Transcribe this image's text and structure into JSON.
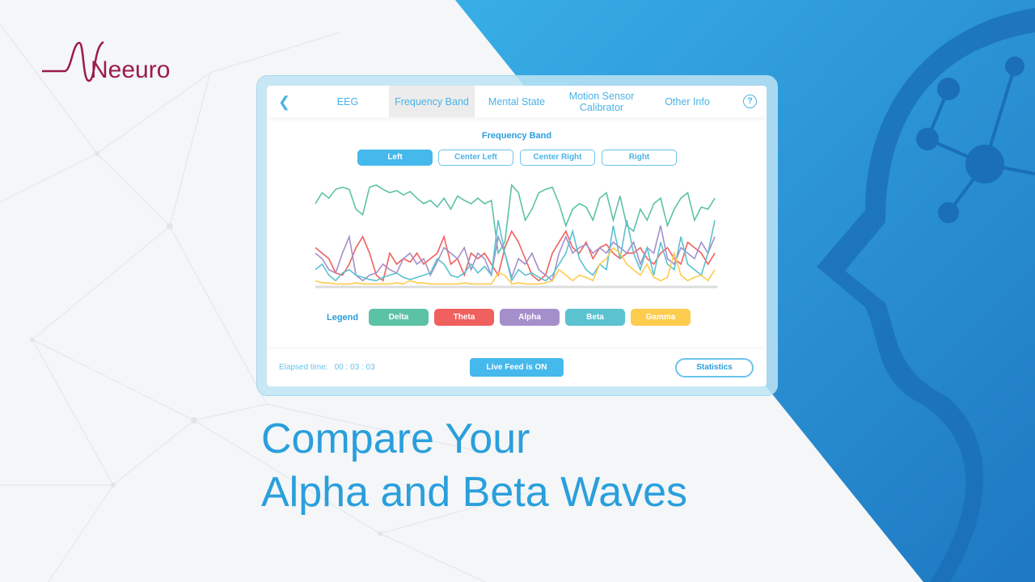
{
  "brand": {
    "name": "Neeuro",
    "color": "#9b1b4a"
  },
  "app": {
    "tabs": [
      {
        "label": "EEG"
      },
      {
        "label": "Frequency Band",
        "active": true
      },
      {
        "label": "Mental State"
      },
      {
        "label": "Motion Sensor Calibrator"
      },
      {
        "label": "Other Info"
      }
    ],
    "back_icon": "chevron-left-icon",
    "help_icon": "question-circle-icon",
    "section_title": "Frequency Band",
    "channels": [
      {
        "label": "Left",
        "selected": true
      },
      {
        "label": "Center Left"
      },
      {
        "label": "Center Right"
      },
      {
        "label": "Right"
      }
    ],
    "legend_label": "Legend",
    "footer": {
      "elapsed_label": "Elapsed time:",
      "elapsed_value": "00 : 03 : 03",
      "live_feed": "Live Feed is ON",
      "statistics": "Statistics"
    }
  },
  "headline": {
    "line1": "Compare Your",
    "line2": "Alpha and Beta Waves"
  },
  "colors": {
    "accent": "#45b8ec",
    "background_blue": "#2f95d8"
  },
  "chart_data": {
    "type": "line",
    "ylim": [
      0,
      1
    ],
    "grid": false,
    "series": [
      {
        "name": "Delta",
        "color": "#5cc2a6",
        "values": [
          0.75,
          0.85,
          0.8,
          0.88,
          0.9,
          0.88,
          0.7,
          0.65,
          0.9,
          0.92,
          0.88,
          0.85,
          0.87,
          0.83,
          0.86,
          0.8,
          0.75,
          0.78,
          0.72,
          0.8,
          0.7,
          0.82,
          0.78,
          0.75,
          0.8,
          0.75,
          0.78,
          0.3,
          0.4,
          0.92,
          0.85,
          0.6,
          0.7,
          0.85,
          0.88,
          0.9,
          0.75,
          0.55,
          0.7,
          0.75,
          0.72,
          0.6,
          0.8,
          0.85,
          0.6,
          0.82,
          0.55,
          0.5,
          0.7,
          0.6,
          0.75,
          0.8,
          0.55,
          0.7,
          0.8,
          0.85,
          0.6,
          0.72,
          0.7,
          0.8
        ]
      },
      {
        "name": "Theta",
        "color": "#f0605f",
        "values": [
          0.35,
          0.3,
          0.25,
          0.12,
          0.1,
          0.2,
          0.35,
          0.45,
          0.3,
          0.1,
          0.05,
          0.3,
          0.2,
          0.25,
          0.22,
          0.3,
          0.2,
          0.25,
          0.3,
          0.45,
          0.2,
          0.25,
          0.1,
          0.3,
          0.25,
          0.3,
          0.2,
          0.1,
          0.35,
          0.5,
          0.4,
          0.25,
          0.1,
          0.05,
          0.1,
          0.3,
          0.4,
          0.5,
          0.35,
          0.3,
          0.4,
          0.25,
          0.35,
          0.38,
          0.3,
          0.25,
          0.3,
          0.3,
          0.35,
          0.25,
          0.2,
          0.3,
          0.35,
          0.25,
          0.2,
          0.4,
          0.35,
          0.3,
          0.2,
          0.3
        ]
      },
      {
        "name": "Alpha",
        "color": "#a58fcb",
        "values": [
          0.3,
          0.25,
          0.15,
          0.12,
          0.3,
          0.45,
          0.1,
          0.05,
          0.1,
          0.12,
          0.2,
          0.15,
          0.12,
          0.25,
          0.3,
          0.2,
          0.25,
          0.1,
          0.22,
          0.35,
          0.3,
          0.25,
          0.35,
          0.15,
          0.3,
          0.25,
          0.1,
          0.45,
          0.3,
          0.08,
          0.25,
          0.2,
          0.3,
          0.15,
          0.1,
          0.05,
          0.3,
          0.45,
          0.3,
          0.35,
          0.38,
          0.3,
          0.35,
          0.3,
          0.4,
          0.35,
          0.3,
          0.4,
          0.2,
          0.35,
          0.3,
          0.55,
          0.25,
          0.2,
          0.35,
          0.3,
          0.25,
          0.4,
          0.3,
          0.45
        ]
      },
      {
        "name": "Beta",
        "color": "#5bc2d0",
        "values": [
          0.15,
          0.2,
          0.1,
          0.05,
          0.12,
          0.15,
          0.1,
          0.08,
          0.06,
          0.05,
          0.08,
          0.1,
          0.12,
          0.08,
          0.06,
          0.08,
          0.1,
          0.12,
          0.25,
          0.2,
          0.1,
          0.08,
          0.12,
          0.2,
          0.12,
          0.18,
          0.1,
          0.6,
          0.3,
          0.05,
          0.15,
          0.1,
          0.12,
          0.08,
          0.05,
          0.1,
          0.2,
          0.3,
          0.5,
          0.25,
          0.15,
          0.1,
          0.2,
          0.15,
          0.55,
          0.25,
          0.6,
          0.3,
          0.15,
          0.35,
          0.1,
          0.4,
          0.2,
          0.15,
          0.45,
          0.2,
          0.15,
          0.1,
          0.3,
          0.6
        ]
      },
      {
        "name": "Gamma",
        "color": "#fdcc4d",
        "values": [
          0.05,
          0.03,
          0.03,
          0.02,
          0.02,
          0.02,
          0.03,
          0.02,
          0.02,
          0.02,
          0.02,
          0.02,
          0.03,
          0.02,
          0.05,
          0.03,
          0.03,
          0.02,
          0.02,
          0.02,
          0.02,
          0.02,
          0.03,
          0.02,
          0.02,
          0.02,
          0.02,
          0.12,
          0.1,
          0.02,
          0.03,
          0.02,
          0.02,
          0.02,
          0.03,
          0.05,
          0.15,
          0.1,
          0.05,
          0.1,
          0.08,
          0.05,
          0.2,
          0.25,
          0.35,
          0.3,
          0.2,
          0.15,
          0.1,
          0.2,
          0.08,
          0.05,
          0.08,
          0.3,
          0.1,
          0.05,
          0.08,
          0.1,
          0.05,
          0.15
        ]
      }
    ]
  }
}
